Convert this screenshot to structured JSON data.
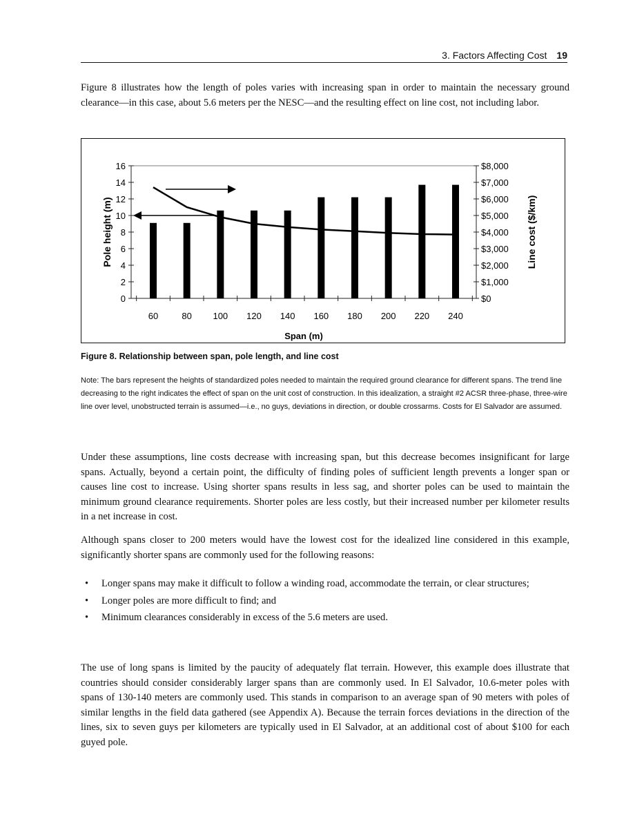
{
  "header": {
    "section": "3. Factors Affecting Cost",
    "page": "19"
  },
  "intro": "Figure 8 illustrates how the length of poles varies with increasing span in order to maintain the necessary ground clearance—in this case, about 5.6 meters per the NESC—and the resulting effect on line cost, not including labor.",
  "chart_data": {
    "type": "bar",
    "xlabel": "Span (m)",
    "ylabel": "Pole height (m)",
    "y2label": "Line cost ($/km)",
    "categories": [
      "60",
      "80",
      "100",
      "120",
      "140",
      "160",
      "180",
      "200",
      "220",
      "240"
    ],
    "ylim": [
      0,
      16
    ],
    "yticks": [
      "0",
      "2",
      "4",
      "6",
      "8",
      "10",
      "12",
      "14",
      "16"
    ],
    "y2lim": [
      0,
      8000
    ],
    "y2ticks": [
      "$0",
      "$1,000",
      "$2,000",
      "$3,000",
      "$4,000",
      "$5,000",
      "$6,000",
      "$7,000",
      "$8,000"
    ],
    "series": [
      {
        "type": "bar",
        "axis": "left",
        "values": [
          9.1,
          9.1,
          10.6,
          10.6,
          10.6,
          12.2,
          12.2,
          12.2,
          13.7,
          13.7
        ],
        "color": "#000000"
      },
      {
        "type": "line",
        "axis": "right",
        "values": [
          6700,
          5500,
          4900,
          4500,
          4300,
          4150,
          4050,
          3950,
          3875,
          3850
        ],
        "color": "#000000"
      }
    ],
    "annotations": [
      "arrow pointing right to cost axis",
      "arrow pointing left to pole height axis"
    ],
    "grid": false
  },
  "figure": {
    "caption": "Figure 8.  Relationship between span, pole length, and line cost",
    "note": "Note: The bars represent the heights of standardized poles needed to maintain the required ground clearance for different spans.  The trend line decreasing to the right indicates the effect of span on the unit cost of construction.  In this idealization, a straight #2 ACSR three-phase, three-wire line over level, unobstructed terrain is assumed—i.e., no guys, deviations in direction, or double crossarms. Costs for El Salvador are assumed."
  },
  "para1": "Under these assumptions, line costs decrease with increasing span, but this decrease becomes insignificant for large spans. Actually, beyond a certain point, the difficulty of finding poles of sufficient length prevents a longer span or causes line cost to increase. Using shorter spans results in less sag, and shorter poles can be used to maintain the minimum ground clearance requirements. Shorter poles are less costly, but their increased number per kilometer results in a net increase in cost.",
  "para2": "Although spans closer to 200 meters would have the lowest cost for the idealized line considered in this example, significantly shorter spans are commonly used for the following reasons:",
  "bullets": [
    "Longer spans may make it difficult to follow a winding road, accommodate the terrain, or clear structures;",
    "Longer poles are more difficult to find; and",
    "Minimum clearances considerably in excess of the 5.6 meters are used."
  ],
  "para3": "The use of long spans is limited by the paucity of adequately flat terrain. However, this example does illustrate that countries should consider considerably larger spans than are commonly used.  In El Salvador, 10.6-meter poles with spans of 130-140 meters are commonly used. This stands in comparison to an average span of 90 meters with poles of similar lengths in the field data gathered (see Appendix A). Because the terrain forces deviations in the direction of the lines, six to seven guys per kilometers are typically used in El Salvador, at an additional cost of about $100 for each guyed pole."
}
